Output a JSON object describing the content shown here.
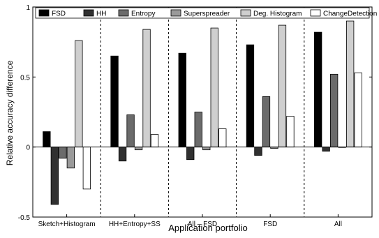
{
  "chart_data": {
    "type": "bar",
    "xlabel": "Application portfolio",
    "ylabel": "Relative accuracy difference",
    "ylim": [
      -0.5,
      1
    ],
    "yticks": [
      {
        "value": -0.5,
        "label": "-0.5"
      },
      {
        "value": 0,
        "label": "0"
      },
      {
        "value": 0.5,
        "label": "0.5"
      },
      {
        "value": 1,
        "label": "1"
      }
    ],
    "categories": [
      "Sketch+Histogram",
      "HH+Entropy+SS",
      "All – FSD",
      "FSD",
      "All"
    ],
    "series": [
      {
        "name": "FSD",
        "color": "#000000",
        "values": [
          0.11,
          0.65,
          0.67,
          0.73,
          0.82
        ]
      },
      {
        "name": "HH",
        "color": "#303030",
        "values": [
          -0.41,
          -0.1,
          -0.09,
          -0.06,
          -0.03
        ]
      },
      {
        "name": "Entropy",
        "color": "#6b6b6b",
        "values": [
          -0.08,
          0.23,
          0.25,
          0.36,
          0.52
        ]
      },
      {
        "name": "Superspreader",
        "color": "#9a9a9a",
        "values": [
          -0.15,
          -0.02,
          -0.02,
          -0.01,
          0.0
        ]
      },
      {
        "name": "Deg. Histogram",
        "color": "#cfcfcf",
        "values": [
          0.76,
          0.84,
          0.85,
          0.87,
          0.9
        ]
      },
      {
        "name": "ChangeDetection",
        "color": "#ffffff",
        "values": [
          -0.3,
          0.09,
          0.13,
          0.22,
          0.53
        ]
      }
    ],
    "group_separators": "dashed",
    "legend_position": "top",
    "grid": false
  }
}
